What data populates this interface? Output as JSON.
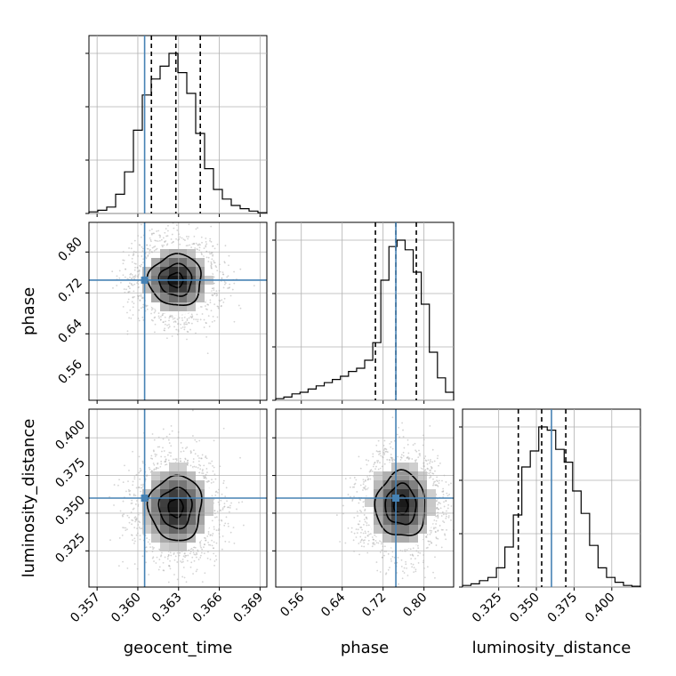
{
  "chart_data": {
    "type": "corner",
    "parameters": [
      "geocent_time",
      "phase",
      "luminosity_distance"
    ],
    "labels": {
      "geocent_time": "geocent_time",
      "phase": "phase",
      "luminosity_distance": "luminosity_distance"
    },
    "ranges": {
      "geocent_time": [
        0.3564,
        0.3695
      ],
      "phase": [
        0.51,
        0.858
      ],
      "luminosity_distance": [
        0.301,
        0.419
      ]
    },
    "ticks": {
      "geocent_time": [
        "0.357",
        "0.360",
        "0.363",
        "0.366",
        "0.369"
      ],
      "phase": [
        "0.56",
        "0.64",
        "0.72",
        "0.80"
      ],
      "luminosity_distance": [
        "0.325",
        "0.350",
        "0.375",
        "0.400"
      ]
    },
    "truths": {
      "geocent_time": 0.3605,
      "phase": 0.745,
      "luminosity_distance": 0.36
    },
    "quantiles": {
      "geocent_time": [
        0.361,
        0.3628,
        0.3646
      ],
      "phase": [
        0.705,
        0.745,
        0.785
      ],
      "luminosity_distance": [
        0.338,
        0.3535,
        0.3695
      ]
    },
    "histograms": {
      "geocent_time": [
        0.01,
        0.02,
        0.04,
        0.12,
        0.26,
        0.52,
        0.74,
        0.84,
        0.92,
        1.0,
        0.88,
        0.75,
        0.5,
        0.28,
        0.15,
        0.09,
        0.05,
        0.03,
        0.015,
        0.005
      ],
      "phase": [
        0.01,
        0.02,
        0.04,
        0.05,
        0.07,
        0.09,
        0.11,
        0.13,
        0.15,
        0.18,
        0.2,
        0.25,
        0.36,
        0.75,
        0.96,
        1.0,
        0.94,
        0.8,
        0.6,
        0.3,
        0.14,
        0.05
      ],
      "luminosity_distance": [
        0.01,
        0.02,
        0.04,
        0.06,
        0.12,
        0.25,
        0.45,
        0.75,
        0.85,
        1.0,
        0.98,
        0.86,
        0.78,
        0.6,
        0.46,
        0.26,
        0.12,
        0.06,
        0.03,
        0.01,
        0.005
      ]
    },
    "density_2d": {
      "phase_vs_geocent_time": {
        "center": [
          0.3628,
          0.745
        ],
        "sigma": [
          0.0014,
          0.036
        ],
        "levels": [
          0.39,
          0.86,
          1.39
        ]
      },
      "luminosity_distance_vs_geocent_time": {
        "center": [
          0.3628,
          0.3535
        ],
        "sigma": [
          0.0014,
          0.0155
        ],
        "levels": [
          0.39,
          0.86,
          1.39
        ]
      },
      "luminosity_distance_vs_phase": {
        "center": [
          0.755,
          0.3555
        ],
        "sigma": [
          0.035,
          0.0155
        ],
        "levels": [
          0.39,
          0.86,
          1.39
        ]
      }
    },
    "grid": true,
    "truth_color": "#4682b4",
    "quantile_style": "dashed",
    "histogram_color": "#000000",
    "scatter_color": "#b0b0b0",
    "grid_color": "#b0b0b0"
  }
}
